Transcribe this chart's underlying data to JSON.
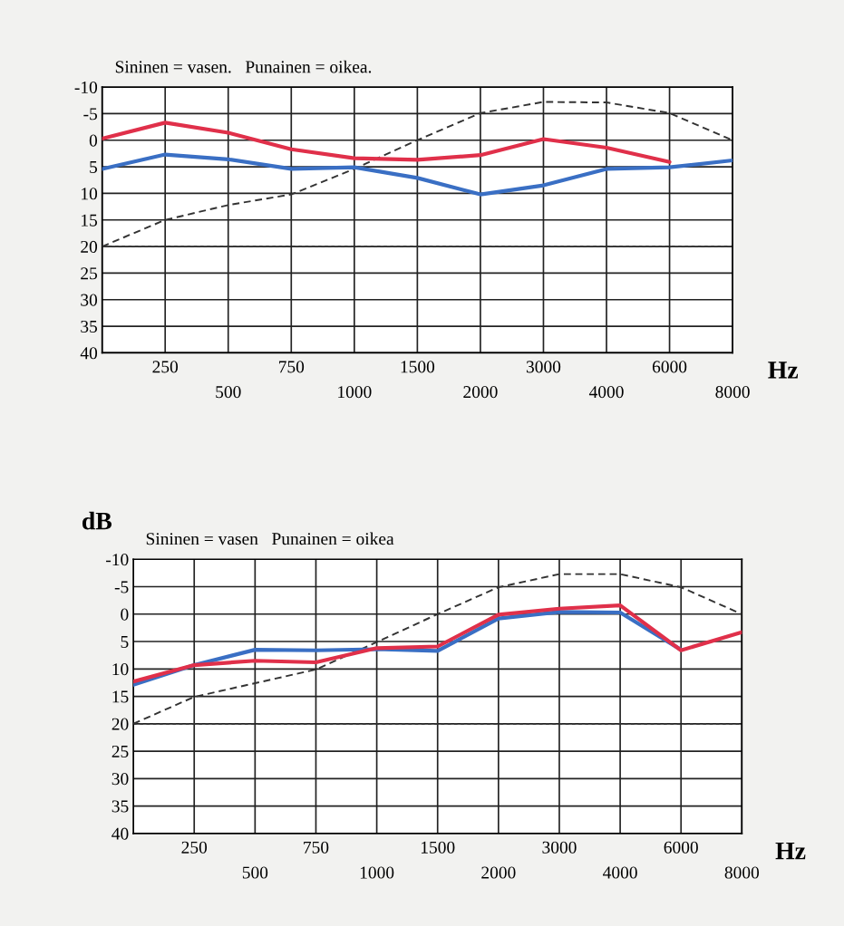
{
  "chart_data": [
    {
      "type": "line",
      "subtitle": "Sininen = vasen.   Punainen = oikea.",
      "xlabel": "Hz",
      "categories": [
        null,
        "250",
        "500",
        "750",
        "1000",
        "1500",
        "2000",
        "3000",
        "4000",
        "6000",
        "8000"
      ],
      "ylim": [
        40,
        -10
      ],
      "yticks": [
        -10,
        -5,
        0,
        5,
        10,
        15,
        20,
        25,
        30,
        35,
        40
      ],
      "grid": true,
      "ref_lines": [
        {
          "axis": "y",
          "value": 20,
          "label": null,
          "color": "#333333",
          "line_style": "dotted"
        }
      ],
      "series": [
        {
          "color": "#333333",
          "line_style": "dashed",
          "values": [
            20,
            15,
            12.2,
            10.2,
            5.4,
            0,
            -5.1,
            -7.2,
            -7.1,
            -5.1,
            0
          ]
        },
        {
          "color": "#3a6fc4",
          "line_style": "solid",
          "values": [
            5.4,
            2.7,
            3.6,
            5.4,
            5.1,
            7.1,
            10.2,
            8.5,
            5.4,
            5.1,
            3.8
          ]
        },
        {
          "color": "#e0304a",
          "line_style": "solid",
          "values": [
            -0.3,
            -3.3,
            -1.4,
            1.7,
            3.4,
            3.7,
            2.8,
            -0.2,
            1.4,
            4.1,
            null
          ]
        }
      ]
    },
    {
      "type": "line",
      "subtitle": "Sininen = vasen   Punainen = oikea",
      "xlabel": "Hz",
      "ylabel": "dB",
      "categories": [
        null,
        "250",
        "500",
        "750",
        "1000",
        "1500",
        "2000",
        "3000",
        "4000",
        "6000",
        "8000"
      ],
      "ylim": [
        40,
        -10
      ],
      "yticks": [
        -10,
        -5,
        0,
        5,
        10,
        15,
        20,
        25,
        30,
        35,
        40
      ],
      "grid": true,
      "ref_lines": [
        {
          "axis": "y",
          "value": 20,
          "label": null,
          "color": "#333333",
          "line_style": "dotted"
        }
      ],
      "series": [
        {
          "color": "#333333",
          "line_style": "dashed",
          "values": [
            20,
            15.1,
            12.6,
            10.1,
            5.1,
            0,
            -4.9,
            -7.3,
            -7.3,
            -4.9,
            0
          ]
        },
        {
          "color": "#3a6fc4",
          "line_style": "solid",
          "values": [
            12.9,
            9.3,
            6.5,
            6.6,
            6.4,
            6.7,
            0.8,
            -0.4,
            -0.3,
            6.5,
            null
          ]
        },
        {
          "color": "#e0304a",
          "line_style": "solid",
          "values": [
            12.3,
            9.3,
            8.5,
            8.8,
            6.2,
            5.9,
            0.1,
            -1.0,
            -1.6,
            6.6,
            3.3
          ]
        }
      ]
    }
  ]
}
